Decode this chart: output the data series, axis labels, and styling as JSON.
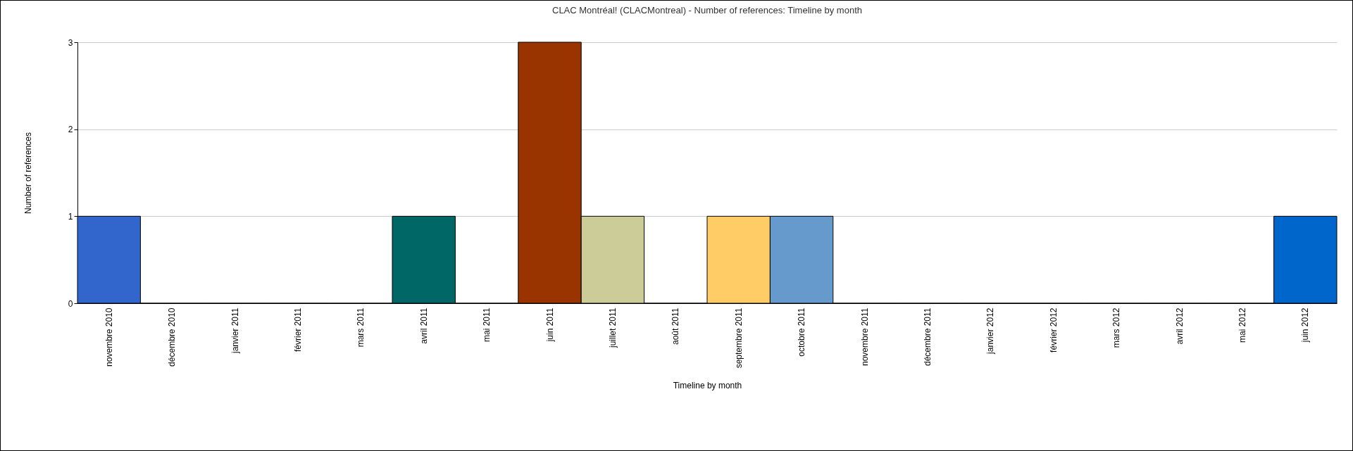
{
  "chart_data": {
    "type": "bar",
    "title": "CLAC Montréal! (CLACMontreal) - Number of references: Timeline by month",
    "xlabel": "Timeline by month",
    "ylabel": "Number of references",
    "categories": [
      "novembre 2010",
      "décembre 2010",
      "janvier 2011",
      "février 2011",
      "mars 2011",
      "avril 2011",
      "mai 2011",
      "juin 2011",
      "juillet 2011",
      "août 2011",
      "septembre 2011",
      "octobre 2011",
      "novembre 2011",
      "décembre 2011",
      "janvier 2012",
      "février 2012",
      "mars 2012",
      "avril 2012",
      "mai 2012",
      "juin 2012"
    ],
    "values": [
      1,
      0,
      0,
      0,
      0,
      1,
      0,
      3,
      1,
      0,
      1,
      1,
      0,
      0,
      0,
      0,
      0,
      0,
      0,
      1
    ],
    "colors": [
      "#3366cc",
      null,
      null,
      null,
      null,
      "#006666",
      null,
      "#993300",
      "#cccc99",
      null,
      "#ffcc66",
      "#6699cc",
      null,
      null,
      null,
      null,
      null,
      null,
      null,
      "#0066cc"
    ],
    "ylim": [
      0,
      3
    ],
    "yticks": [
      0,
      1,
      2,
      3
    ],
    "grid": "y"
  }
}
